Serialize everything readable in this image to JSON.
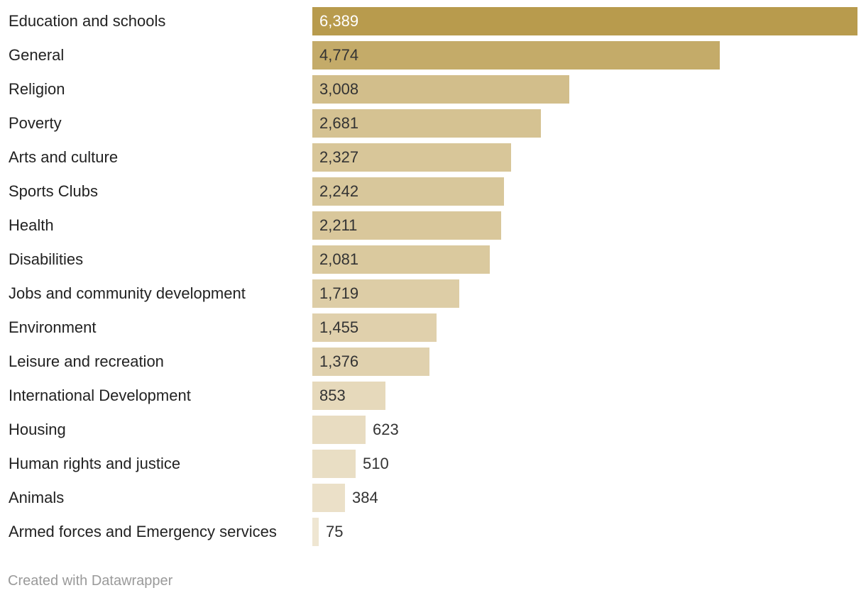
{
  "chart_data": {
    "type": "bar",
    "orientation": "horizontal",
    "categories": [
      "Education and schools",
      "General",
      "Religion",
      "Poverty",
      "Arts and culture",
      "Sports Clubs",
      "Health",
      "Disabilities",
      "Jobs and community development",
      "Environment",
      "Leisure and recreation",
      "International Development",
      "Housing",
      "Human rights and justice",
      "Animals",
      "Armed forces and Emergency services"
    ],
    "values": [
      6389,
      4774,
      3008,
      2681,
      2327,
      2242,
      2211,
      2081,
      1719,
      1455,
      1376,
      853,
      623,
      510,
      384,
      75
    ],
    "value_labels": [
      "6,389",
      "4,774",
      "3,008",
      "2,681",
      "2,327",
      "2,242",
      "2,211",
      "2,081",
      "1,719",
      "1,455",
      "1,376",
      "853",
      "623",
      "510",
      "384",
      "75"
    ],
    "xlim": [
      0,
      6389
    ],
    "grid": false,
    "colors": {
      "max": "#b89b4d",
      "min": "#f1e8d6"
    }
  },
  "footer": {
    "credit": "Created with Datawrapper"
  }
}
